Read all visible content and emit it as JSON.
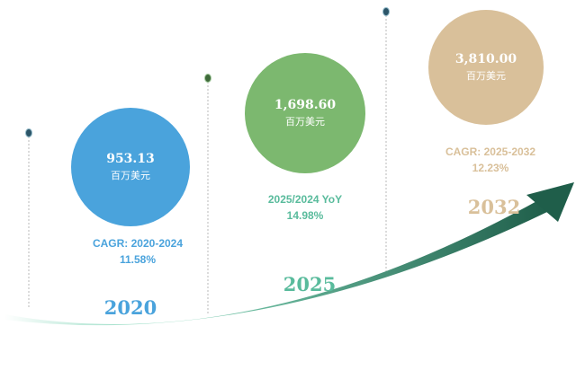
{
  "chart_data": {
    "type": "timeline",
    "categories": [
      "2020",
      "2025",
      "2032"
    ],
    "values": [
      953.13,
      1698.6,
      3810.0
    ],
    "unit": "百万美元",
    "points": [
      {
        "year": "2020",
        "value_label": "953.13",
        "unit": "百万美元",
        "growth_label": "CAGR: 2020-2024",
        "growth_value": "11.58%",
        "color": "#4aa3dc"
      },
      {
        "year": "2025",
        "value_label": "1,698.60",
        "unit": "百万美元",
        "growth_label": "2025/2024 YoY",
        "growth_value": "14.98%",
        "color": "#7cb86f"
      },
      {
        "year": "2032",
        "value_label": "3,810.00",
        "unit": "百万美元",
        "growth_label": "CAGR: 2025-2032",
        "growth_value": "12.23%",
        "color": "#d9c09a"
      }
    ],
    "colors": {
      "blue": "#4aa3dc",
      "green": "#7cb86f",
      "tan": "#d9c09a",
      "teal_text": "#59bb9c",
      "arrow_dark": "#1f5e4a",
      "arrow_light": "#7fd4b6",
      "pin": "#2c5568",
      "dotted_line": "#b8b8b8"
    }
  }
}
